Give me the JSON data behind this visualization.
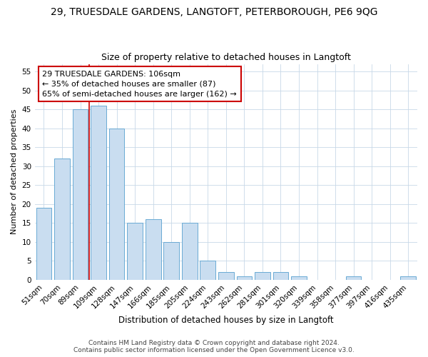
{
  "title": "29, TRUESDALE GARDENS, LANGTOFT, PETERBOROUGH, PE6 9QG",
  "subtitle": "Size of property relative to detached houses in Langtoft",
  "xlabel": "Distribution of detached houses by size in Langtoft",
  "ylabel": "Number of detached properties",
  "categories": [
    "51sqm",
    "70sqm",
    "89sqm",
    "109sqm",
    "128sqm",
    "147sqm",
    "166sqm",
    "185sqm",
    "205sqm",
    "224sqm",
    "243sqm",
    "262sqm",
    "281sqm",
    "301sqm",
    "320sqm",
    "339sqm",
    "358sqm",
    "377sqm",
    "397sqm",
    "416sqm",
    "435sqm"
  ],
  "values": [
    19,
    32,
    45,
    46,
    40,
    15,
    16,
    10,
    15,
    5,
    2,
    1,
    2,
    2,
    1,
    0,
    0,
    1,
    0,
    0,
    1
  ],
  "bar_color": "#c9ddf0",
  "bar_edge_color": "#6aaad4",
  "highlight_bar_index": 3,
  "highlight_line_color": "#cc0000",
  "ylim": [
    0,
    57
  ],
  "yticks": [
    0,
    5,
    10,
    15,
    20,
    25,
    30,
    35,
    40,
    45,
    50,
    55
  ],
  "annotation_box_text": "29 TRUESDALE GARDENS: 106sqm\n← 35% of detached houses are smaller (87)\n65% of semi-detached houses are larger (162) →",
  "annotation_box_color": "#cc0000",
  "footer_line1": "Contains HM Land Registry data © Crown copyright and database right 2024.",
  "footer_line2": "Contains public sector information licensed under the Open Government Licence v3.0.",
  "bg_color": "#ffffff",
  "grid_color": "#c8d8e8",
  "title_fontsize": 10,
  "subtitle_fontsize": 9,
  "ylabel_fontsize": 8,
  "xlabel_fontsize": 8.5,
  "tick_fontsize": 7.5,
  "footer_fontsize": 6.5,
  "ann_fontsize": 8
}
